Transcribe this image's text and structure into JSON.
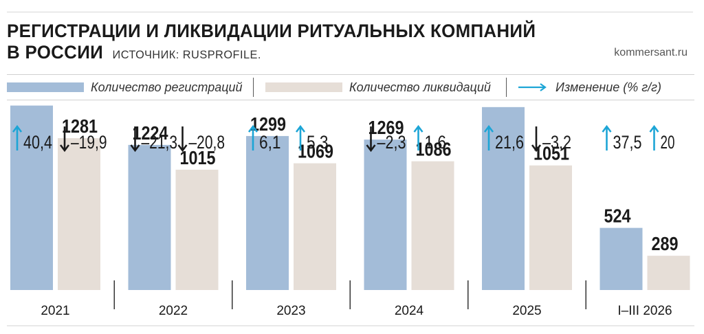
{
  "header": {
    "title_line1": "РЕГИСТРАЦИИ И ЛИКВИДАЦИИ РИТУАЛЬНЫХ КОМПАНИЙ",
    "title_line2": "В РОССИИ",
    "source": "ИСТОЧНИК: RUSPROFILE.",
    "site": "kommersant.ru"
  },
  "legend": {
    "registrations": "Количество регистраций",
    "liquidations": "Количество ликвидаций",
    "change": "Изменение (% г/г)"
  },
  "colors": {
    "registrations": "#a3bcd8",
    "liquidations": "#e6ded7",
    "up_arrow": "#1ca5d6",
    "down_arrow": "#1a1a1a"
  },
  "chart_data": {
    "type": "bar",
    "categories": [
      "2021",
      "2022",
      "2023",
      "2024",
      "2025",
      "I–III 2026"
    ],
    "series": [
      {
        "name": "Количество регистраций",
        "values": [
          1556,
          1224,
          1299,
          1269,
          1543,
          524
        ],
        "change_labels": [
          "40,4",
          "–21,3",
          "6,1",
          "–2,3",
          "21,6",
          "37,5"
        ],
        "change_dir": [
          "up",
          "down",
          "up",
          "down",
          "up",
          "up"
        ]
      },
      {
        "name": "Количество ликвидаций",
        "values": [
          1281,
          1015,
          1069,
          1086,
          1051,
          289
        ],
        "change_labels": [
          "–19,9",
          "–20,8",
          "5,3",
          "1,6",
          "–3,2",
          "20"
        ],
        "change_dir": [
          "down",
          "down",
          "up",
          "up",
          "down",
          "up"
        ]
      }
    ],
    "ylim": [
      0,
      1600
    ],
    "grid": false,
    "legend_position": "top"
  }
}
